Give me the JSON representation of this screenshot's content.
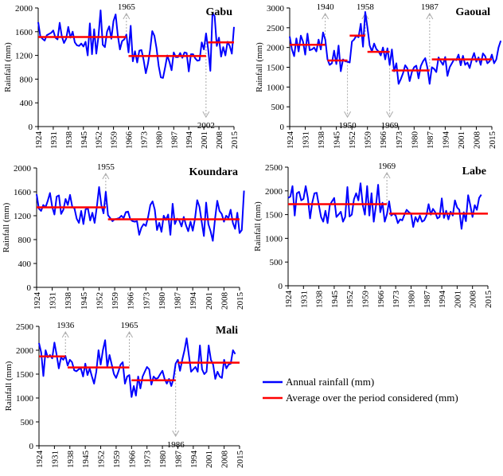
{
  "legend": {
    "items": [
      {
        "label": "Annual rainfall (mm)",
        "color": "#0000ff"
      },
      {
        "label": "Average over the period considered (mm)",
        "color": "#ff0000"
      }
    ]
  },
  "chart_data": [
    {
      "type": "line",
      "title": "Gabu",
      "ylabel": "Rainfall (mm)",
      "xlabel": "",
      "xlim": [
        1924,
        2015
      ],
      "ylim": [
        0,
        2000
      ],
      "yticks": [
        0,
        400,
        800,
        1200,
        1600,
        2000
      ],
      "xticks": [
        1924,
        1931,
        1938,
        1945,
        1952,
        1959,
        1966,
        1973,
        1980,
        1987,
        1994,
        2001,
        2008,
        2015
      ],
      "x_start": 1924,
      "series": [
        {
          "name": "Annual rainfall (mm)",
          "color": "#0000ff",
          "values": [
            1760,
            1520,
            1480,
            1450,
            1540,
            1560,
            1580,
            1620,
            1500,
            1470,
            1750,
            1520,
            1410,
            1480,
            1680,
            1500,
            1600,
            1420,
            1370,
            1360,
            1400,
            1350,
            1430,
            1200,
            1740,
            1220,
            1640,
            1230,
            1520,
            1960,
            1380,
            1340,
            1600,
            1690,
            1480,
            1780,
            1890,
            1540,
            1300,
            1440,
            1470,
            1550,
            1250,
            1700,
            1100,
            1270,
            1080,
            1280,
            1290,
            1120,
            900,
            1060,
            1290,
            1610,
            1530,
            1320,
            1020,
            830,
            820,
            1000,
            1200,
            1090,
            950,
            1250,
            1170,
            1170,
            1240,
            1160,
            1250,
            1240,
            930,
            1220,
            1220,
            1150,
            1110,
            1120,
            1420,
            1300,
            1570,
            1300,
            940,
            1920,
            1860,
            1360,
            1500,
            1180,
            1340,
            1200,
            1430,
            1360,
            1230,
            1680
          ]
        }
      ],
      "averages": [
        {
          "start": 1924,
          "end": 1965,
          "value": 1510
        },
        {
          "start": 1966,
          "end": 2002,
          "value": 1190
        },
        {
          "start": 2003,
          "end": 2015,
          "value": 1420
        }
      ],
      "annotations": [
        {
          "label": "1965",
          "year": 1965,
          "direction": "up"
        },
        {
          "label": "2002",
          "year": 2002,
          "direction": "down"
        }
      ]
    },
    {
      "type": "line",
      "title": "Gaoual",
      "ylabel": "Rainfall (mm)",
      "xlabel": "",
      "xlim": [
        1924,
        2015
      ],
      "ylim": [
        0,
        3000
      ],
      "yticks": [
        0,
        500,
        1000,
        1500,
        2000,
        2500,
        3000
      ],
      "xticks": [
        1924,
        1931,
        1938,
        1945,
        1952,
        1959,
        1966,
        1973,
        1980,
        1987,
        1994,
        2001,
        2008,
        2015
      ],
      "x_start": 1924,
      "series": [
        {
          "name": "Annual rainfall (mm)",
          "color": "#0000ff",
          "values": [
            2280,
            1950,
            1780,
            2230,
            1900,
            2300,
            2150,
            1820,
            2350,
            1930,
            1950,
            2000,
            1900,
            2200,
            1950,
            2380,
            2200,
            1700,
            1560,
            1600,
            1920,
            1580,
            2050,
            1400,
            1700,
            1650,
            1640,
            1620,
            2150,
            2200,
            2300,
            2260,
            2600,
            2020,
            2900,
            2500,
            2050,
            1900,
            2100,
            1960,
            1900,
            1800,
            2000,
            1700,
            1980,
            1560,
            1950,
            1400,
            1600,
            1080,
            1200,
            1350,
            1550,
            1470,
            1150,
            1380,
            1500,
            1540,
            1220,
            1530,
            1650,
            1730,
            1480,
            1080,
            1500,
            1460,
            1380,
            1750,
            1650,
            1560,
            1760,
            1280,
            1500,
            1600,
            1700,
            1680,
            1820,
            1550,
            1790,
            1560,
            1620,
            1480,
            1700,
            1860,
            1640,
            1750,
            1560,
            1850,
            1780,
            1600,
            1650,
            1820,
            1600,
            1700,
            2000,
            2170
          ]
        }
      ],
      "averages": [
        {
          "start": 1924,
          "end": 1940,
          "value": 2070
        },
        {
          "start": 1941,
          "end": 1950,
          "value": 1670
        },
        {
          "start": 1951,
          "end": 1958,
          "value": 2300
        },
        {
          "start": 1959,
          "end": 1969,
          "value": 1890
        },
        {
          "start": 1970,
          "end": 1987,
          "value": 1420
        },
        {
          "start": 1988,
          "end": 2015,
          "value": 1700
        }
      ],
      "annotations": [
        {
          "label": "1940",
          "year": 1940,
          "direction": "up"
        },
        {
          "label": "1950",
          "year": 1950,
          "direction": "down"
        },
        {
          "label": "1958",
          "year": 1958,
          "direction": "up"
        },
        {
          "label": "1969",
          "year": 1969,
          "direction": "down"
        },
        {
          "label": "1987",
          "year": 1987,
          "direction": "up"
        }
      ]
    },
    {
      "type": "line",
      "title": "Koundara",
      "ylabel": "Rainfall (mm)",
      "xlabel": "",
      "xlim": [
        1924,
        2015
      ],
      "ylim": [
        0,
        2000
      ],
      "yticks": [
        0,
        400,
        800,
        1200,
        1600,
        2000
      ],
      "xticks": [
        1924,
        1931,
        1938,
        1945,
        1952,
        1959,
        1966,
        1973,
        1980,
        1987,
        1994,
        2001,
        2008,
        2015
      ],
      "x_start": 1924,
      "series": [
        {
          "name": "Annual rainfall (mm)",
          "color": "#0000ff",
          "values": [
            1560,
            1320,
            1280,
            1380,
            1340,
            1450,
            1580,
            1350,
            1220,
            1520,
            1540,
            1230,
            1300,
            1480,
            1380,
            1550,
            1350,
            1320,
            1150,
            1080,
            1280,
            1060,
            1310,
            1320,
            1120,
            1250,
            1080,
            1350,
            1680,
            1380,
            1240,
            1600,
            1210,
            1160,
            1110,
            1140,
            1150,
            1160,
            1200,
            1160,
            1260,
            1270,
            1140,
            1110,
            1100,
            1110,
            880,
            1000,
            1060,
            1030,
            1180,
            1380,
            1440,
            1300,
            960,
            1080,
            930,
            1200,
            1130,
            1220,
            880,
            1400,
            1060,
            1150,
            1120,
            1020,
            1180,
            1040,
            940,
            1100,
            950,
            1150,
            1460,
            1350,
            1100,
            860,
            1420,
            1060,
            940,
            780,
            1150,
            1450,
            1280,
            1230,
            1100,
            1200,
            1160,
            1300,
            1080,
            980,
            1250,
            910,
            960,
            1620
          ]
        }
      ],
      "averages": [
        {
          "start": 1924,
          "end": 1955,
          "value": 1340
        },
        {
          "start": 1956,
          "end": 2015,
          "value": 1140
        }
      ],
      "annotations": [
        {
          "label": "1955",
          "year": 1955,
          "direction": "up"
        }
      ]
    },
    {
      "type": "line",
      "title": "Labe",
      "ylabel": "Rainfall (mm)",
      "xlabel": "",
      "xlim": [
        1924,
        2015
      ],
      "ylim": [
        0,
        2500
      ],
      "yticks": [
        0,
        500,
        1000,
        1500,
        2000,
        2500
      ],
      "xticks": [
        1924,
        1931,
        1938,
        1945,
        1952,
        1959,
        1966,
        1973,
        1980,
        1987,
        1994,
        2001,
        2008,
        2015
      ],
      "x_start": 1924,
      "series": [
        {
          "name": "Annual rainfall (mm)",
          "color": "#0000ff",
          "values": [
            1850,
            1880,
            2100,
            1480,
            1950,
            1980,
            1800,
            1830,
            2100,
            1850,
            1420,
            1750,
            1950,
            1960,
            1700,
            1450,
            1350,
            1580,
            1320,
            1700,
            1780,
            1850,
            1450,
            1500,
            1560,
            1350,
            1450,
            2080,
            1460,
            1500,
            1820,
            1950,
            1800,
            2160,
            1700,
            1500,
            2100,
            1480,
            1950,
            1350,
            1680,
            2130,
            1550,
            1750,
            1350,
            1500,
            1780,
            1480,
            1520,
            1480,
            1320,
            1400,
            1380,
            1500,
            1600,
            1550,
            1520,
            1240,
            1450,
            1350,
            1480,
            1350,
            1380,
            1480,
            1720,
            1500,
            1620,
            1550,
            1420,
            1450,
            1840,
            1430,
            1580,
            1400,
            1560,
            1480,
            1800,
            1650,
            1600,
            1200,
            1550,
            1360,
            1910,
            1700,
            1450,
            1700,
            1600,
            1850,
            1920
          ]
        }
      ],
      "averages": [
        {
          "start": 1924,
          "end": 1969,
          "value": 1720
        },
        {
          "start": 1970,
          "end": 2015,
          "value": 1520
        }
      ],
      "annotations": [
        {
          "label": "1969",
          "year": 1969,
          "direction": "up"
        }
      ]
    },
    {
      "type": "line",
      "title": "Mali",
      "ylabel": "Rainfall (mm)",
      "xlabel": "",
      "xlim": [
        1924,
        2015
      ],
      "ylim": [
        0,
        2500
      ],
      "yticks": [
        0,
        500,
        1000,
        1500,
        2000,
        2500
      ],
      "xticks": [
        1924,
        1931,
        1938,
        1945,
        1952,
        1959,
        1966,
        1973,
        1980,
        1987,
        1994,
        2001,
        2008,
        2015
      ],
      "x_start": 1924,
      "series": [
        {
          "name": "Annual rainfall (mm)",
          "color": "#0000ff",
          "values": [
            2150,
            1950,
            1460,
            2000,
            1850,
            1900,
            1830,
            2160,
            1900,
            1620,
            1850,
            1800,
            1880,
            1680,
            1800,
            1750,
            1580,
            1560,
            1600,
            1620,
            1450,
            1720,
            1480,
            1620,
            1450,
            1300,
            1550,
            2000,
            1700,
            2000,
            2210,
            1650,
            1900,
            1700,
            1500,
            1420,
            1550,
            1700,
            1750,
            1300,
            1450,
            1480,
            1020,
            1250,
            1050,
            1450,
            1200,
            1450,
            1550,
            1650,
            1600,
            1280,
            1450,
            1400,
            1420,
            1500,
            1570,
            1400,
            1300,
            1400,
            1250,
            1400,
            1720,
            1800,
            1570,
            1800,
            2000,
            2250,
            1900,
            1550,
            1600,
            1650,
            1550,
            2100,
            1600,
            1500,
            1550,
            2100,
            1800,
            1700,
            1400,
            1550,
            1450,
            1420,
            1800,
            1620,
            1700,
            1720,
            2000,
            1920
          ]
        }
      ],
      "averages": [
        {
          "start": 1924,
          "end": 1936,
          "value": 1870
        },
        {
          "start": 1937,
          "end": 1965,
          "value": 1640
        },
        {
          "start": 1966,
          "end": 1986,
          "value": 1370
        },
        {
          "start": 1987,
          "end": 2015,
          "value": 1740
        }
      ],
      "annotations": [
        {
          "label": "1936",
          "year": 1936,
          "direction": "up"
        },
        {
          "label": "1965",
          "year": 1965,
          "direction": "up"
        },
        {
          "label": "1986",
          "year": 1986,
          "direction": "down"
        }
      ]
    }
  ]
}
